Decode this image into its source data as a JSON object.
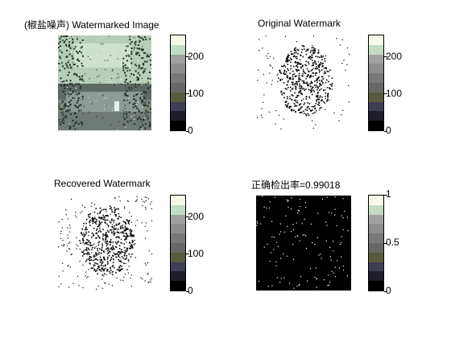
{
  "colors": {
    "colormap": [
      "#f8f8ea",
      "#c3dcc4",
      "#a1a1a1",
      "#8e8e8e",
      "#787878",
      "#676767",
      "#5a5a40",
      "#3e3e54",
      "#1e1e2a",
      "#000000"
    ],
    "binary_colormap": [
      "#f8f8ea",
      "#c3dcc4",
      "#a1a1a1",
      "#8e8e8e",
      "#787878",
      "#676767",
      "#5a5a40",
      "#3e3e54",
      "#1e1e2a",
      "#000000"
    ]
  },
  "panels": [
    {
      "id": "watermarked",
      "title": "(椒盐噪声) Watermarked Image",
      "image_kind": "landscape",
      "cbar_ticks": [
        "200",
        "100",
        "0"
      ]
    },
    {
      "id": "original",
      "title": "Original Watermark",
      "image_kind": "watermark",
      "cbar_ticks": [
        "200",
        "100",
        "0"
      ]
    },
    {
      "id": "recovered",
      "title": "Recovered Watermark",
      "image_kind": "watermark_noisy",
      "cbar_ticks": [
        "200",
        "100",
        "0"
      ]
    },
    {
      "id": "difference",
      "title": "正确检出率=0.99018",
      "image_kind": "noise",
      "cbar_ticks": [
        "1",
        "0.5",
        "0"
      ]
    }
  ]
}
